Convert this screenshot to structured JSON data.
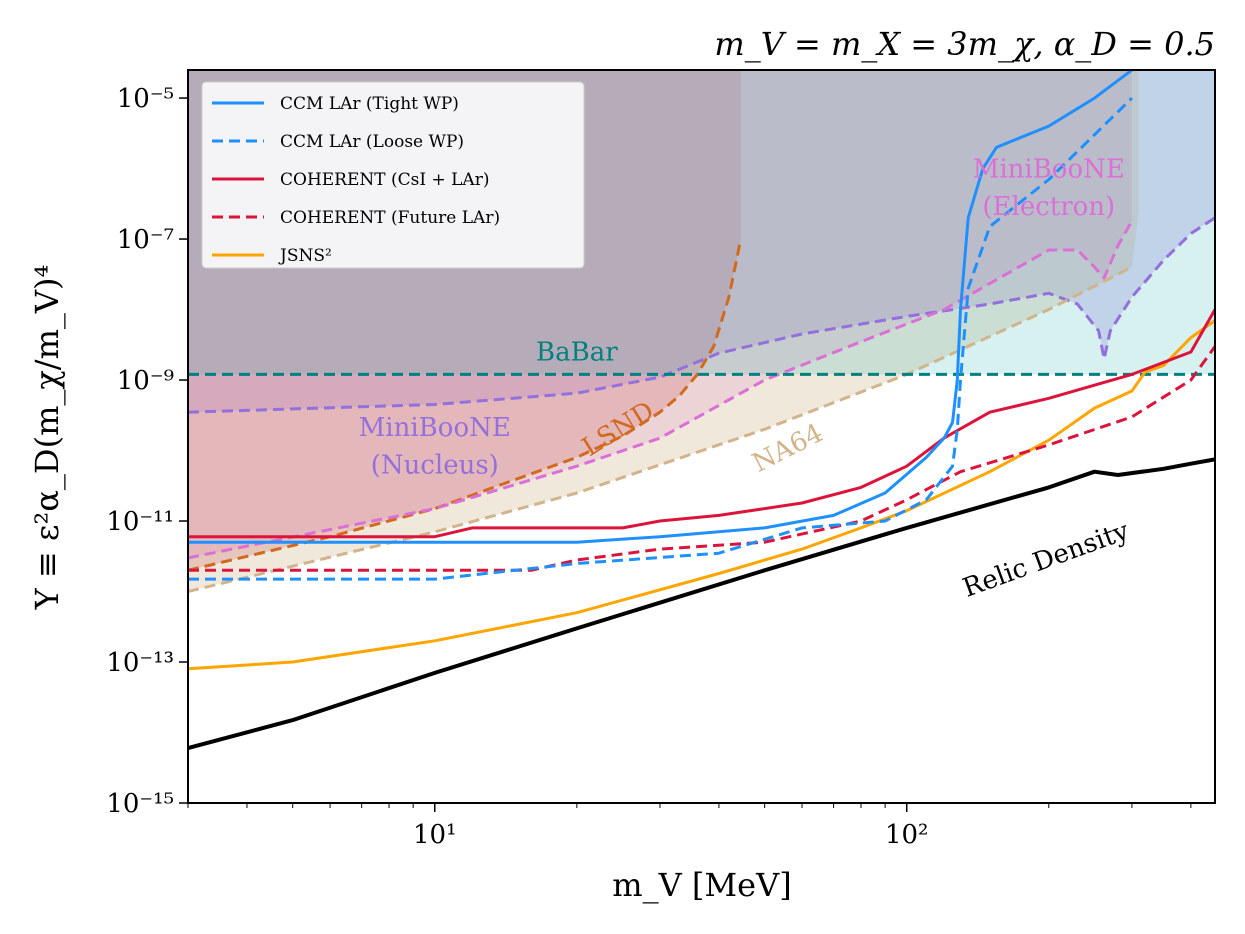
{
  "chart_data": {
    "type": "line",
    "title": "m_V = m_X = 3m_χ, α_D = 0.5",
    "xlabel": "m_V [MeV]",
    "ylabel": "Y ≡ ε²α_D(m_χ/m_V)⁴",
    "xscale": "log",
    "yscale": "log",
    "xlim": [
      3,
      450
    ],
    "ylim": [
      1e-15,
      2.5e-05
    ],
    "x_ticks": [
      {
        "value": 10,
        "label": "10¹"
      },
      {
        "value": 100,
        "label": "10²"
      }
    ],
    "y_ticks": [
      {
        "value": 1e-05,
        "label": "10⁻⁵"
      },
      {
        "value": 1e-07,
        "label": "10⁻⁷"
      },
      {
        "value": 1e-09,
        "label": "10⁻⁹"
      },
      {
        "value": 1e-11,
        "label": "10⁻¹¹"
      },
      {
        "value": 1e-13,
        "label": "10⁻¹³"
      },
      {
        "value": 1e-15,
        "label": "10⁻¹⁵"
      }
    ],
    "legend_position": "top-left",
    "legend": [
      {
        "label": "CCM LAr (Tight WP)",
        "color": "#1e90ff",
        "dash": "solid"
      },
      {
        "label": "CCM LAr (Loose WP)",
        "color": "#1e90ff",
        "dash": "dashed"
      },
      {
        "label": "COHERENT (CsI + LAr)",
        "color": "#dc143c",
        "dash": "solid"
      },
      {
        "label": "COHERENT (Future LAr)",
        "color": "#dc143c",
        "dash": "dashed"
      },
      {
        "label": "JSNS²",
        "color": "#ffa500",
        "dash": "solid"
      }
    ],
    "regions": [
      {
        "name": "LSND",
        "color": "#cd5c5c",
        "opacity": 0.3,
        "points": [
          [
            3,
            2e-12
          ],
          [
            6,
            6e-12
          ],
          [
            10,
            1.5e-11
          ],
          [
            15,
            4e-11
          ],
          [
            20,
            8e-11
          ],
          [
            25,
            1.6e-10
          ],
          [
            30,
            3.5e-10
          ],
          [
            33,
            6e-10
          ],
          [
            36,
            1.2e-09
          ],
          [
            39,
            3e-09
          ],
          [
            42,
            1.5e-08
          ],
          [
            44.5,
            1e-07
          ],
          [
            44.5,
            2.5e-05
          ],
          [
            3,
            2.5e-05
          ]
        ]
      },
      {
        "name": "MiniBooNE (Nucleus)",
        "color": "#9370db",
        "opacity": 0.25,
        "points": [
          [
            3,
            3.5e-10
          ],
          [
            10,
            4.5e-10
          ],
          [
            20,
            6.5e-10
          ],
          [
            30,
            1.1e-09
          ],
          [
            40,
            2.4e-09
          ],
          [
            60,
            4.5e-09
          ],
          [
            100,
            8e-09
          ],
          [
            150,
            1.2e-08
          ],
          [
            200,
            1.7e-08
          ],
          [
            230,
            1.2e-08
          ],
          [
            255,
            5e-09
          ],
          [
            262,
            2e-09
          ],
          [
            270,
            5e-09
          ],
          [
            300,
            1.5e-08
          ],
          [
            350,
            5e-08
          ],
          [
            400,
            1.2e-07
          ],
          [
            450,
            2e-07
          ],
          [
            450,
            2.5e-05
          ],
          [
            3,
            2.5e-05
          ]
        ]
      },
      {
        "name": "MiniBooNE (Electron)",
        "color": "#da70d6",
        "opacity": 0.2,
        "points": [
          [
            3,
            3e-12
          ],
          [
            10,
            1.5e-11
          ],
          [
            20,
            6e-11
          ],
          [
            30,
            1.5e-10
          ],
          [
            50,
            1e-09
          ],
          [
            80,
            3.5e-09
          ],
          [
            120,
            1e-08
          ],
          [
            160,
            3e-08
          ],
          [
            200,
            7e-08
          ],
          [
            230,
            7e-08
          ],
          [
            250,
            4e-08
          ],
          [
            262,
            2.8e-08
          ],
          [
            280,
            8e-08
          ],
          [
            300,
            1.8e-07
          ],
          [
            300,
            2.5e-05
          ],
          [
            3,
            2.5e-05
          ]
        ]
      },
      {
        "name": "NA64",
        "color": "#d2b48c",
        "opacity": 0.3,
        "points": [
          [
            3,
            1e-12
          ],
          [
            10,
            7e-12
          ],
          [
            20,
            2.5e-11
          ],
          [
            50,
            2e-10
          ],
          [
            100,
            1.2e-09
          ],
          [
            200,
            1e-08
          ],
          [
            300,
            4e-08
          ],
          [
            310,
            2.5e-07
          ],
          [
            310,
            2.5e-05
          ],
          [
            3,
            2.5e-05
          ]
        ]
      },
      {
        "name": "BaBar",
        "color": "#20b2aa",
        "opacity": 0.18,
        "points": [
          [
            3,
            1.2e-09
          ],
          [
            450,
            1.2e-09
          ],
          [
            450,
            2.5e-05
          ],
          [
            3,
            2.5e-05
          ]
        ]
      }
    ],
    "series": [
      {
        "name": "LSND",
        "color": "#d2691e",
        "dash": "dashed",
        "width": 3,
        "x": [
          3,
          6,
          10,
          15,
          20,
          25,
          30,
          33,
          36,
          39,
          42,
          44.5
        ],
        "y": [
          2e-12,
          6e-12,
          1.5e-11,
          4e-11,
          8e-11,
          1.6e-10,
          3.5e-10,
          6e-10,
          1.2e-09,
          3e-09,
          1.5e-08,
          1e-07
        ]
      },
      {
        "name": "MiniBooNE (Nucleus)",
        "color": "#9370db",
        "dash": "dashed",
        "width": 3,
        "x": [
          3,
          10,
          20,
          30,
          40,
          60,
          100,
          150,
          200,
          230,
          255,
          262,
          270,
          300,
          350,
          400,
          450
        ],
        "y": [
          3.5e-10,
          4.5e-10,
          6.5e-10,
          1.1e-09,
          2.4e-09,
          4.5e-09,
          8e-09,
          1.2e-08,
          1.7e-08,
          1.2e-08,
          5e-09,
          2e-09,
          5e-09,
          1.5e-08,
          5e-08,
          1.2e-07,
          2e-07
        ]
      },
      {
        "name": "MiniBooNE (Electron)",
        "color": "#da70d6",
        "dash": "dashed",
        "width": 3,
        "x": [
          3,
          10,
          20,
          30,
          50,
          80,
          120,
          160,
          200,
          230,
          250,
          262,
          280,
          300
        ],
        "y": [
          3e-12,
          1.5e-11,
          6e-11,
          1.5e-10,
          1e-09,
          3.5e-09,
          1e-08,
          3e-08,
          7e-08,
          7e-08,
          4e-08,
          2.8e-08,
          8e-08,
          1.8e-07
        ]
      },
      {
        "name": "NA64",
        "color": "#d2b48c",
        "dash": "dashed",
        "width": 3,
        "x": [
          3,
          10,
          20,
          50,
          100,
          200,
          300
        ],
        "y": [
          1e-12,
          7e-12,
          2.5e-11,
          2e-10,
          1.2e-09,
          1e-08,
          4e-08
        ]
      },
      {
        "name": "BaBar",
        "color": "#008080",
        "dash": "dashed",
        "width": 3,
        "x": [
          3,
          450
        ],
        "y": [
          1.2e-09,
          1.2e-09
        ]
      },
      {
        "name": "Relic Density",
        "color": "#000000",
        "dash": "solid",
        "width": 4,
        "x": [
          3,
          5,
          10,
          20,
          50,
          100,
          200,
          250,
          280,
          350,
          400,
          450
        ],
        "y": [
          6e-15,
          1.5e-14,
          7e-14,
          3e-13,
          2e-12,
          8e-12,
          3e-11,
          5e-11,
          4.5e-11,
          5.5e-11,
          6.5e-11,
          7.5e-11
        ]
      },
      {
        "name": "JSNS²",
        "color": "#ffa500",
        "dash": "solid",
        "width": 3,
        "x": [
          3,
          5,
          10,
          20,
          40,
          60,
          80,
          100,
          150,
          200,
          250,
          300,
          320,
          350,
          400,
          450
        ],
        "y": [
          8e-14,
          1e-13,
          2e-13,
          5e-13,
          1.8e-12,
          4e-12,
          8e-12,
          1.4e-11,
          5e-11,
          1.4e-10,
          4e-10,
          7e-10,
          1.3e-09,
          1.6e-09,
          4e-09,
          7e-09
        ]
      },
      {
        "name": "COHERENT (Future LAr)",
        "color": "#dc143c",
        "dash": "dashed",
        "width": 3,
        "x": [
          3,
          10,
          16,
          20,
          30,
          50,
          80,
          100,
          130,
          200,
          300,
          400,
          450
        ],
        "y": [
          2e-12,
          2e-12,
          2e-12,
          2.8e-12,
          4e-12,
          5e-12,
          1e-11,
          2e-11,
          5e-11,
          1.2e-10,
          3e-10,
          1e-09,
          3e-09
        ]
      },
      {
        "name": "COHERENT (CsI + LAr)",
        "color": "#dc143c",
        "dash": "solid",
        "width": 3,
        "x": [
          3,
          10,
          12,
          20,
          25,
          30,
          40,
          60,
          80,
          100,
          120,
          150,
          200,
          300,
          400,
          450
        ],
        "y": [
          6e-12,
          6e-12,
          8e-12,
          8e-12,
          8e-12,
          1e-11,
          1.2e-11,
          1.8e-11,
          3e-11,
          6e-11,
          1.5e-10,
          3.5e-10,
          5.5e-10,
          1.2e-09,
          2.5e-09,
          1e-08
        ]
      },
      {
        "name": "CCM LAr (Loose WP)",
        "color": "#1e90ff",
        "dash": "dashed",
        "width": 3,
        "x": [
          3,
          10,
          20,
          40,
          60,
          90,
          110,
          125,
          128,
          130,
          135,
          150,
          200,
          300
        ],
        "y": [
          1.5e-12,
          1.5e-12,
          2.5e-12,
          3.5e-12,
          8e-12,
          1e-11,
          2e-11,
          6e-11,
          2e-10,
          1e-09,
          2e-08,
          1.5e-07,
          7e-07,
          1e-05
        ]
      },
      {
        "name": "CCM LAr (Tight WP)",
        "color": "#1e90ff",
        "dash": "solid",
        "width": 3,
        "x": [
          3,
          10,
          20,
          30,
          50,
          70,
          90,
          110,
          120,
          125,
          128,
          130,
          135,
          145,
          155,
          200,
          250,
          300
        ],
        "y": [
          5e-12,
          5e-12,
          5e-12,
          6e-12,
          8e-12,
          1.2e-11,
          2.5e-11,
          8e-11,
          1.5e-10,
          2.5e-10,
          1e-09,
          1e-08,
          2e-07,
          1e-06,
          2e-06,
          4e-06,
          1e-05,
          2.5e-05
        ]
      }
    ],
    "annotations": [
      {
        "text": "BaBar",
        "color": "#008080",
        "x": 20,
        "y": 1.9e-09,
        "rotation": 0
      },
      {
        "text": "MiniBooNE",
        "color": "#9370db",
        "x": 10,
        "y": 1.6e-10,
        "rotation": 0
      },
      {
        "text": "(Nucleus)",
        "color": "#9370db",
        "x": 10,
        "y": 4.7e-11,
        "rotation": 0
      },
      {
        "text": "MiniBooNE",
        "color": "#da70d6",
        "x": 200,
        "y": 7.5e-07,
        "rotation": 0
      },
      {
        "text": "(Electron)",
        "color": "#da70d6",
        "x": 200,
        "y": 2.2e-07,
        "rotation": 0
      },
      {
        "text": "LSND",
        "color": "#d2691e",
        "x": 25,
        "y": 1.6e-10,
        "rotation": -32
      },
      {
        "text": "NA64",
        "color": "#d2b48c",
        "x": 57,
        "y": 8.5e-11,
        "rotation": -27
      },
      {
        "text": "Relic Density",
        "color": "#000000",
        "x": 200,
        "y": 2.2e-12,
        "rotation": -20
      }
    ]
  }
}
